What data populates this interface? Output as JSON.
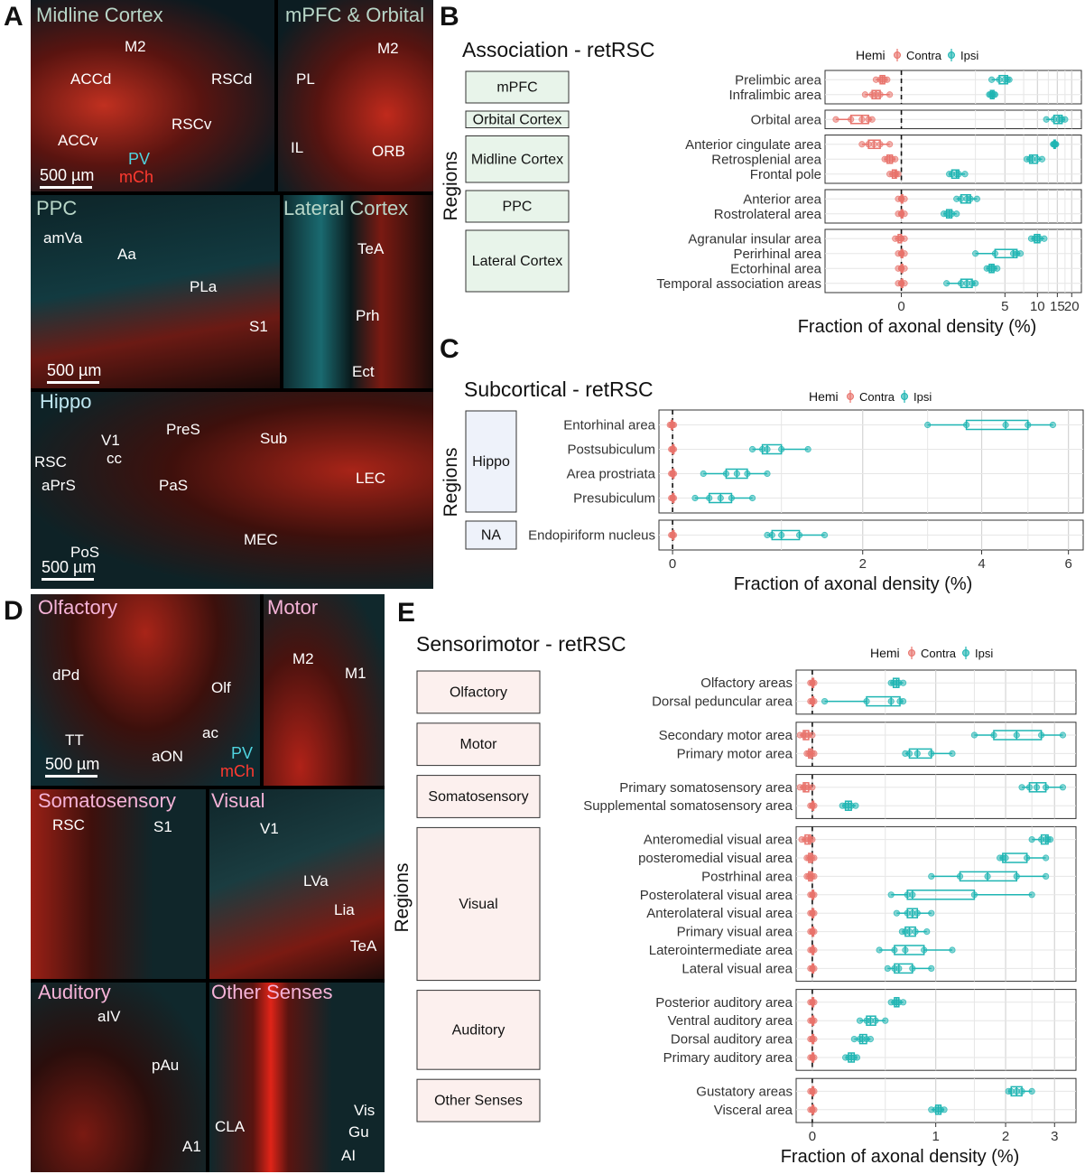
{
  "panel_letters": {
    "A": "A",
    "B": "B",
    "C": "C",
    "D": "D",
    "E": "E"
  },
  "panel_a": {
    "subpanels": [
      {
        "title": "Midline Cortex",
        "labels": [
          "M2",
          "ACCd",
          "RSCd",
          "RSCv",
          "ACCv",
          "PV",
          "mCh"
        ],
        "scale": "500 µm"
      },
      {
        "title": "mPFC & Orbital",
        "labels": [
          "M2",
          "PL",
          "IL",
          "ORB"
        ]
      },
      {
        "title": "PPC",
        "labels": [
          "amVa",
          "Aa",
          "PLa",
          "S1"
        ],
        "scale": "500 µm"
      },
      {
        "title": "Lateral Cortex",
        "labels": [
          "TeA",
          "Prh",
          "Ect"
        ]
      },
      {
        "title": "Hippo",
        "labels": [
          "V1",
          "PreS",
          "Sub",
          "RSC",
          "cc",
          "PaS",
          "LEC",
          "aPrS",
          "PoS",
          "MEC"
        ],
        "scale": "500 µm"
      }
    ]
  },
  "panel_d": {
    "subpanels": [
      {
        "title": "Olfactory",
        "labels": [
          "dPd",
          "Olf",
          "ac",
          "TT",
          "aON",
          "PV",
          "mCh"
        ],
        "scale": "500 µm"
      },
      {
        "title": "Motor",
        "labels": [
          "M2",
          "M1"
        ]
      },
      {
        "title": "Somatosensory",
        "labels": [
          "RSC",
          "S1"
        ]
      },
      {
        "title": "Visual",
        "labels": [
          "V1",
          "LVa",
          "Lia",
          "TeA"
        ]
      },
      {
        "title": "Auditory",
        "labels": [
          "aIV",
          "pAu",
          "A1"
        ]
      },
      {
        "title": "Other Senses",
        "labels": [
          "CLA",
          "Vis",
          "Gu",
          "AI"
        ]
      }
    ]
  },
  "chart_data": [
    {
      "panel": "B",
      "type": "boxplot",
      "title": "Association - retRSC",
      "xlabel": "Fraction of axonal density (%)",
      "ylabel": "Regions",
      "x_scale": "pseudo-log",
      "x_ticks": [
        "0",
        "5",
        "10",
        "15",
        "20"
      ],
      "x_tick_values": [
        0,
        5,
        10,
        15,
        20
      ],
      "legend": {
        "title": "Hemi",
        "entries": [
          "Contra",
          "Ipsi"
        ],
        "placement": "top"
      },
      "colors": {
        "Contra": "#e8736c",
        "Ipsi": "#1fb5b3",
        "group_fill": "#e8f4ea"
      },
      "groups": [
        {
          "name": "mPFC",
          "regions": [
            {
              "name": "Prelimbic area",
              "contra": [
                -0.5,
                -0.4,
                -0.35,
                -0.3,
                -0.25
              ],
              "ipsi": [
                3.7,
                4.4,
                5.0,
                5.3,
                5.5
              ]
            },
            {
              "name": "Infralimbic area",
              "contra": [
                -0.8,
                -0.6,
                -0.5,
                -0.4,
                -0.2
              ],
              "ipsi": [
                3.5,
                3.6,
                3.75,
                3.9,
                4.0
              ]
            }
          ]
        },
        {
          "name": "Orbital Cortex",
          "regions": [
            {
              "name": "Orbital area",
              "contra": [
                -2.0,
                -1.3,
                -0.9,
                -0.7,
                -0.6
              ],
              "ipsi": [
                12.0,
                14.0,
                15.5,
                16.5,
                17.5
              ]
            }
          ]
        },
        {
          "name": "Midline Cortex",
          "regions": [
            {
              "name": "Anterior cingulate area",
              "contra": [
                -0.9,
                -0.7,
                -0.55,
                -0.4,
                -0.2
              ],
              "ipsi": [
                13.8,
                14.0,
                14.2,
                14.4,
                14.6
              ]
            },
            {
              "name": "Retrosplenial area",
              "contra": [
                -0.3,
                -0.25,
                -0.2,
                -0.15,
                -0.1
              ],
              "ipsi": [
                8.0,
                8.5,
                9.0,
                10.0,
                11.0
              ]
            },
            {
              "name": "Frontal pole",
              "contra": [
                -0.2,
                -0.15,
                -0.1,
                -0.08,
                -0.05
              ],
              "ipsi": [
                1.2,
                1.3,
                1.5,
                1.6,
                1.9
              ]
            }
          ]
        },
        {
          "name": "PPC",
          "regions": [
            {
              "name": "Anterior area",
              "contra": [
                -0.05,
                0,
                0,
                0,
                0.05
              ],
              "ipsi": [
                1.5,
                1.7,
                2.0,
                2.2,
                2.6
              ]
            },
            {
              "name": "Rostrolateral area",
              "contra": [
                -0.05,
                0,
                0,
                0,
                0.05
              ],
              "ipsi": [
                1.0,
                1.1,
                1.2,
                1.3,
                1.5
              ]
            }
          ]
        },
        {
          "name": "Lateral Cortex",
          "regions": [
            {
              "name": "Agranular insular area",
              "contra": [
                -0.1,
                -0.05,
                0,
                0,
                0.05
              ],
              "ipsi": [
                8.8,
                9.4,
                10.0,
                10.5,
                11.5
              ]
            },
            {
              "name": "Perirhinal area",
              "contra": [
                -0.05,
                0,
                0,
                0,
                0.05
              ],
              "ipsi": [
                2.5,
                4.0,
                6.0,
                6.5,
                7.0
              ]
            },
            {
              "name": "Ectorhinal area",
              "contra": [
                -0.05,
                0,
                0,
                0,
                0.05
              ],
              "ipsi": [
                3.3,
                3.5,
                3.7,
                3.9,
                4.2
              ]
            },
            {
              "name": "Temporal association areas",
              "contra": [
                -0.05,
                0,
                0,
                0,
                0.05
              ],
              "ipsi": [
                1.1,
                1.7,
                2.0,
                2.3,
                2.5
              ]
            }
          ]
        }
      ]
    },
    {
      "panel": "C",
      "type": "boxplot",
      "title": "Subcortical - retRSC",
      "xlabel": "Fraction of axonal density (%)",
      "ylabel": "Regions",
      "x_scale": "pseudo-log",
      "x_ticks": [
        "0",
        "2",
        "4",
        "6"
      ],
      "x_tick_values": [
        0,
        2,
        4,
        6
      ],
      "legend": {
        "title": "Hemi",
        "entries": [
          "Contra",
          "Ipsi"
        ],
        "placement": "top"
      },
      "colors": {
        "Contra": "#e8736c",
        "Ipsi": "#1fb5b3",
        "group_fill": "#eef2fa"
      },
      "groups": [
        {
          "name": "Hippo",
          "regions": [
            {
              "name": "Entorhinal area",
              "contra": [
                -0.02,
                -0.01,
                0,
                0,
                0.01
              ],
              "ipsi": [
                3.0,
                3.7,
                4.5,
                5.0,
                5.6
              ]
            },
            {
              "name": "Postsubiculum",
              "contra": [
                -0.01,
                0,
                0,
                0,
                0.01
              ],
              "ipsi": [
                0.7,
                0.8,
                0.85,
                1.0,
                1.3
              ]
            },
            {
              "name": "Area prostriata",
              "contra": [
                -0.01,
                0,
                0,
                0,
                0.01
              ],
              "ipsi": [
                0.25,
                0.45,
                0.55,
                0.65,
                0.85
              ]
            },
            {
              "name": "Presubiculum",
              "contra": [
                -0.01,
                0,
                0,
                0,
                0.01
              ],
              "ipsi": [
                0.18,
                0.3,
                0.4,
                0.5,
                0.7
              ]
            }
          ]
        },
        {
          "name": "NA",
          "regions": [
            {
              "name": "Endopiriform nucleus",
              "contra": [
                -0.01,
                0,
                0,
                0,
                0.01
              ],
              "ipsi": [
                0.85,
                0.9,
                1.0,
                1.2,
                1.5
              ]
            }
          ]
        }
      ]
    },
    {
      "panel": "E",
      "type": "boxplot",
      "title": "Sensorimotor - retRSC",
      "xlabel": "Fraction of axonal density (%)",
      "ylabel": "Regions",
      "x_scale": "pseudo-log",
      "x_ticks": [
        "0",
        "1",
        "2",
        "3"
      ],
      "x_tick_values": [
        0,
        1,
        2,
        3
      ],
      "legend": {
        "title": "Hemi",
        "entries": [
          "Contra",
          "Ipsi"
        ],
        "placement": "top"
      },
      "colors": {
        "Contra": "#e8736c",
        "Ipsi": "#1fb5b3",
        "group_fill": "#fcf0ee"
      },
      "groups": [
        {
          "name": "Olfactory",
          "regions": [
            {
              "name": "Olfactory areas",
              "contra": [
                -0.01,
                0,
                0,
                0,
                0.01
              ],
              "ipsi": [
                0.55,
                0.57,
                0.6,
                0.62,
                0.66
              ]
            },
            {
              "name": "Dorsal peduncular area",
              "contra": [
                -0.01,
                0,
                0,
                0,
                0.01
              ],
              "ipsi": [
                0.07,
                0.35,
                0.55,
                0.63,
                0.66
              ]
            }
          ]
        },
        {
          "name": "Motor",
          "regions": [
            {
              "name": "Secondary motor area",
              "contra": [
                -0.07,
                -0.05,
                -0.04,
                -0.02,
                0
              ],
              "ipsi": [
                1.5,
                1.8,
                2.2,
                2.7,
                3.2
              ]
            },
            {
              "name": "Primary motor area",
              "contra": [
                -0.03,
                -0.02,
                -0.01,
                0,
                0.01
              ],
              "ipsi": [
                0.68,
                0.72,
                0.8,
                0.95,
                1.2
              ]
            }
          ]
        },
        {
          "name": "Somatosensory",
          "regions": [
            {
              "name": "Primary somatosensory area",
              "contra": [
                -0.07,
                -0.05,
                -0.04,
                -0.02,
                0
              ],
              "ipsi": [
                2.3,
                2.45,
                2.6,
                2.8,
                3.2
              ]
            },
            {
              "name": "Supplemental somatosensory area",
              "contra": [
                -0.01,
                0,
                0,
                0,
                0.01
              ],
              "ipsi": [
                0.18,
                0.2,
                0.22,
                0.24,
                0.27
              ]
            }
          ]
        },
        {
          "name": "Visual",
          "regions": [
            {
              "name": "Anteromedial visual area",
              "contra": [
                -0.06,
                -0.04,
                -0.02,
                -0.01,
                0
              ],
              "ipsi": [
                2.5,
                2.7,
                2.8,
                2.85,
                2.9
              ]
            },
            {
              "name": "posteromedial visual area",
              "contra": [
                -0.03,
                -0.02,
                -0.01,
                0,
                0.01
              ],
              "ipsi": [
                1.9,
                1.95,
                2.0,
                2.4,
                2.8
              ]
            },
            {
              "name": "Postrhinal area",
              "contra": [
                -0.03,
                -0.02,
                -0.01,
                0,
                0.01
              ],
              "ipsi": [
                0.95,
                1.3,
                1.7,
                2.2,
                2.8
              ]
            },
            {
              "name": "Posterolateral visual area",
              "contra": [
                -0.01,
                0,
                0,
                0,
                0.01
              ],
              "ipsi": [
                0.55,
                0.7,
                0.75,
                1.5,
                2.5
              ]
            },
            {
              "name": "Anterolateral visual area",
              "contra": [
                -0.01,
                0,
                0,
                0,
                0.01
              ],
              "ipsi": [
                0.6,
                0.7,
                0.75,
                0.8,
                0.95
              ]
            },
            {
              "name": "Primary visual area",
              "contra": [
                -0.01,
                0,
                0,
                0,
                0.01
              ],
              "ipsi": [
                0.65,
                0.68,
                0.72,
                0.78,
                0.9
              ]
            },
            {
              "name": "Laterointermediate area",
              "contra": [
                -0.01,
                0,
                0,
                0,
                0.01
              ],
              "ipsi": [
                0.45,
                0.58,
                0.68,
                0.87,
                1.2
              ]
            },
            {
              "name": "Lateral visual area",
              "contra": [
                -0.01,
                0,
                0,
                0,
                0.01
              ],
              "ipsi": [
                0.52,
                0.58,
                0.62,
                0.75,
                0.95
              ]
            }
          ]
        },
        {
          "name": "Auditory",
          "regions": [
            {
              "name": "Posterior auditory area",
              "contra": [
                -0.01,
                0,
                0,
                0,
                0.01
              ],
              "ipsi": [
                0.55,
                0.58,
                0.6,
                0.62,
                0.66
              ]
            },
            {
              "name": "Ventral auditory area",
              "contra": [
                -0.01,
                0,
                0,
                0,
                0.01
              ],
              "ipsi": [
                0.3,
                0.35,
                0.38,
                0.42,
                0.5
              ]
            },
            {
              "name": "Dorsal auditory area",
              "contra": [
                -0.01,
                0,
                0,
                0,
                0.01
              ],
              "ipsi": [
                0.26,
                0.3,
                0.32,
                0.35,
                0.38
              ]
            },
            {
              "name": "Primary auditory area",
              "contra": [
                -0.01,
                0,
                0,
                0,
                0.01
              ],
              "ipsi": [
                0.2,
                0.22,
                0.24,
                0.26,
                0.28
              ]
            }
          ]
        },
        {
          "name": "Other Senses",
          "regions": [
            {
              "name": "Gustatory areas",
              "contra": [
                -0.01,
                0,
                0,
                0,
                0.01
              ],
              "ipsi": [
                2.05,
                2.1,
                2.2,
                2.3,
                2.5
              ]
            },
            {
              "name": "Visceral area",
              "contra": [
                -0.01,
                0,
                0,
                0,
                0.01
              ],
              "ipsi": [
                0.95,
                1.0,
                1.03,
                1.06,
                1.1
              ]
            }
          ]
        }
      ]
    }
  ]
}
